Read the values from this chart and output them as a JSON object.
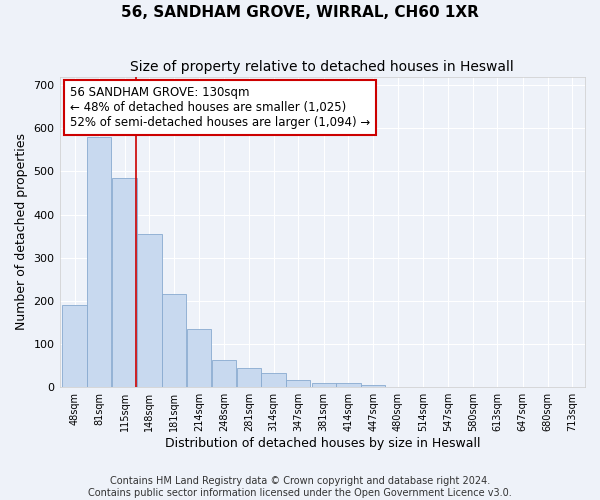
{
  "title": "56, SANDHAM GROVE, WIRRAL, CH60 1XR",
  "subtitle": "Size of property relative to detached houses in Heswall",
  "xlabel": "Distribution of detached houses by size in Heswall",
  "ylabel": "Number of detached properties",
  "bins": [
    48,
    81,
    115,
    148,
    181,
    214,
    248,
    281,
    314,
    347,
    381,
    414,
    447,
    480,
    514,
    547,
    580,
    613,
    647,
    680,
    713
  ],
  "bar_heights": [
    190,
    580,
    485,
    355,
    215,
    135,
    63,
    45,
    32,
    17,
    10,
    10,
    5,
    0,
    0,
    0,
    0,
    0,
    0,
    0,
    0
  ],
  "bar_color": "#c8d9ef",
  "bar_edge_color": "#88aad0",
  "bin_width": 33,
  "property_size": 130,
  "red_line_color": "#cc0000",
  "annotation_line1": "56 SANDHAM GROVE: 130sqm",
  "annotation_line2": "← 48% of detached houses are smaller (1,025)",
  "annotation_line3": "52% of semi-detached houses are larger (1,094) →",
  "annotation_box_color": "#cc0000",
  "ylim": [
    0,
    720
  ],
  "yticks": [
    0,
    100,
    200,
    300,
    400,
    500,
    600,
    700
  ],
  "xlim_left": 28,
  "xlim_right": 730,
  "background_color": "#eef2f9",
  "plot_bg_color": "#eef2f9",
  "grid_color": "#ffffff",
  "footer_text": "Contains HM Land Registry data © Crown copyright and database right 2024.\nContains public sector information licensed under the Open Government Licence v3.0.",
  "title_fontsize": 11,
  "subtitle_fontsize": 10,
  "xlabel_fontsize": 9,
  "ylabel_fontsize": 9,
  "footer_fontsize": 7
}
